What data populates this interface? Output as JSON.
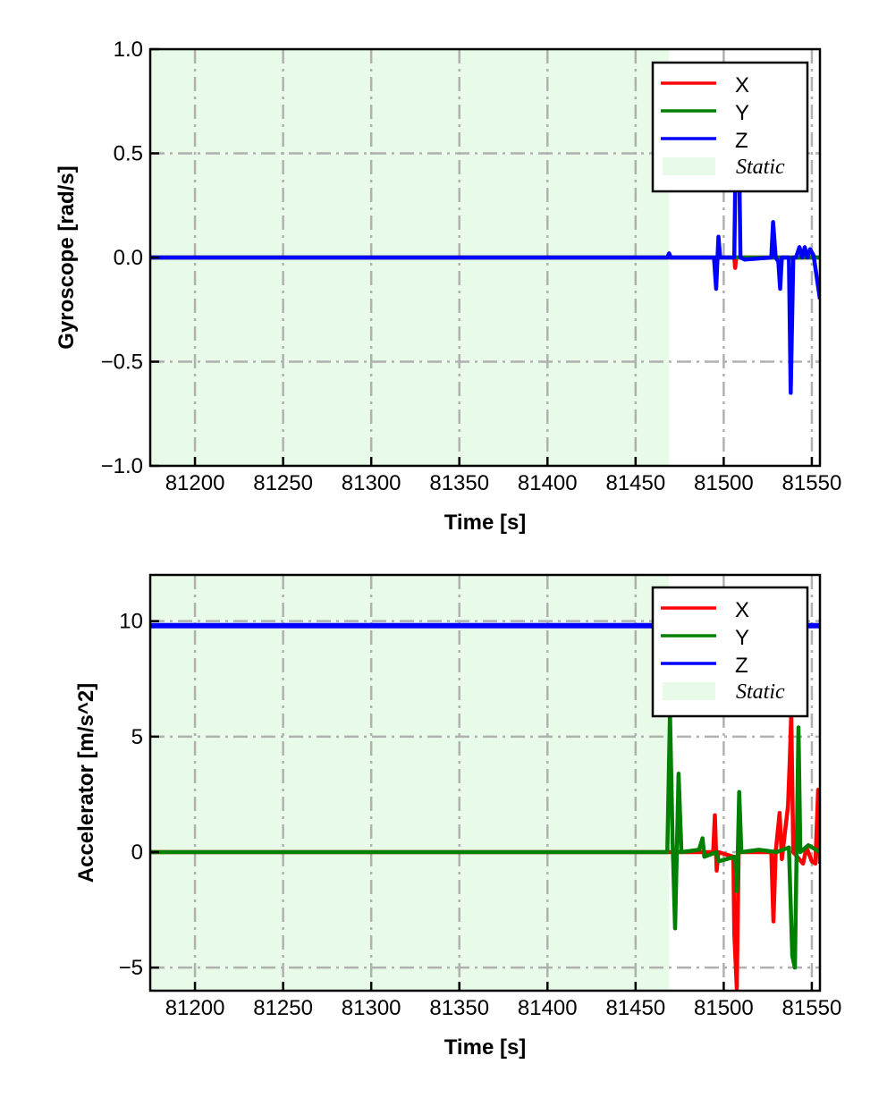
{
  "chart_data": [
    {
      "type": "line",
      "xlabel": "Time [s]",
      "ylabel": "Gyroscope [rad/s]",
      "xlim": [
        81174.6,
        81554.6
      ],
      "ylim": [
        -1.0,
        1.0
      ],
      "xticks": [
        81200,
        81250,
        81300,
        81350,
        81400,
        81450,
        81500,
        81550
      ],
      "xtick_labels": [
        "81200",
        "81250",
        "81300",
        "81350",
        "81400",
        "81450",
        "81500",
        "81550"
      ],
      "yticks": [
        -1.0,
        -0.5,
        0.0,
        0.5,
        1.0
      ],
      "ytick_labels": [
        "−1.0",
        "−0.5",
        "0.0",
        "0.5",
        "1.0"
      ],
      "grid": true,
      "legend_position": "top-right",
      "shaded_region": {
        "label": "Static",
        "x": [
          81174.6,
          81469
        ],
        "color": "#e8fbe8"
      },
      "series": [
        {
          "name": "X",
          "color": "#ff0000",
          "points": [
            [
              81174.6,
              0
            ],
            [
              81506,
              0
            ],
            [
              81506.5,
              -0.05
            ],
            [
              81507,
              0
            ],
            [
              81554.6,
              0
            ]
          ]
        },
        {
          "name": "Y",
          "color": "#008000",
          "points": [
            [
              81174.6,
              0
            ],
            [
              81554.6,
              0
            ]
          ]
        },
        {
          "name": "Z",
          "color": "#0000ff",
          "points": [
            [
              81174.6,
              0
            ],
            [
              81468,
              0
            ],
            [
              81469,
              0.02
            ],
            [
              81470,
              0
            ],
            [
              81494.5,
              0
            ],
            [
              81495.7,
              -0.15
            ],
            [
              81497,
              0.1
            ],
            [
              81498,
              0
            ],
            [
              81506,
              0
            ],
            [
              81507,
              0.65
            ],
            [
              81508.5,
              0.65
            ],
            [
              81509.5,
              0
            ],
            [
              81512,
              -0.01
            ],
            [
              81527,
              0
            ],
            [
              81528,
              0.17
            ],
            [
              81529.5,
              0
            ],
            [
              81531,
              -0.02
            ],
            [
              81532,
              -0.15
            ],
            [
              81533,
              0
            ],
            [
              81535.5,
              0
            ],
            [
              81537,
              0
            ],
            [
              81538,
              -0.65
            ],
            [
              81539.5,
              0
            ],
            [
              81541,
              0
            ],
            [
              81543,
              0.05
            ],
            [
              81544.5,
              0
            ],
            [
              81546,
              0.05
            ],
            [
              81547.5,
              0
            ],
            [
              81549,
              0.04
            ],
            [
              81551,
              0.01
            ],
            [
              81554.6,
              -0.2
            ]
          ]
        }
      ]
    },
    {
      "type": "line",
      "xlabel": "Time [s]",
      "ylabel": "Accelerator [m/s^2]",
      "xlim": [
        81174.6,
        81554.6
      ],
      "ylim": [
        -6,
        12
      ],
      "xticks": [
        81200,
        81250,
        81300,
        81350,
        81400,
        81450,
        81500,
        81550
      ],
      "xtick_labels": [
        "81200",
        "81250",
        "81300",
        "81350",
        "81400",
        "81450",
        "81500",
        "81550"
      ],
      "yticks": [
        -5,
        0,
        5,
        10
      ],
      "ytick_labels": [
        "−5",
        "0",
        "5",
        "10"
      ],
      "grid": true,
      "legend_position": "top-right",
      "shaded_region": {
        "label": "Static",
        "x": [
          81174.6,
          81469
        ],
        "color": "#e8fbe8"
      },
      "series": [
        {
          "name": "X",
          "color": "#ff0000",
          "points": [
            [
              81174.6,
              0
            ],
            [
              81494,
              0
            ],
            [
              81495,
              1.6
            ],
            [
              81496,
              -0.8
            ],
            [
              81497,
              0
            ],
            [
              81505.5,
              -0.2
            ],
            [
              81506,
              -3.5
            ],
            [
              81507.4,
              -5.9
            ],
            [
              81508.5,
              0
            ],
            [
              81527,
              0
            ],
            [
              81528.2,
              -3
            ],
            [
              81529.5,
              0
            ],
            [
              81531.7,
              1.7
            ],
            [
              81533,
              -0.3
            ],
            [
              81536.5,
              2
            ],
            [
              81537.5,
              4
            ],
            [
              81538.3,
              6
            ],
            [
              81539.5,
              0
            ],
            [
              81545,
              -0.5
            ],
            [
              81547,
              0.2
            ],
            [
              81550,
              -0.4
            ],
            [
              81552,
              -0.5
            ],
            [
              81553.6,
              2.7
            ],
            [
              81554.6,
              -0.5
            ]
          ]
        },
        {
          "name": "Y",
          "color": "#008000",
          "points": [
            [
              81174.6,
              0
            ],
            [
              81468,
              0
            ],
            [
              81469.5,
              6
            ],
            [
              81471,
              0.5
            ],
            [
              81472.4,
              -3.3
            ],
            [
              81474.4,
              3.4
            ],
            [
              81476,
              0
            ],
            [
              81486,
              0.1
            ],
            [
              81488,
              0.6
            ],
            [
              81489,
              -0.2
            ],
            [
              81496,
              0
            ],
            [
              81497,
              -0.4
            ],
            [
              81506.5,
              -0.2
            ],
            [
              81507.5,
              -1.7
            ],
            [
              81508.8,
              2.6
            ],
            [
              81510,
              0
            ],
            [
              81520,
              0.1
            ],
            [
              81530,
              0
            ],
            [
              81537,
              0.2
            ],
            [
              81538.9,
              -4.5
            ],
            [
              81540.4,
              -5
            ],
            [
              81542.4,
              5.4
            ],
            [
              81543.5,
              0
            ],
            [
              81548,
              0.3
            ],
            [
              81554.6,
              0
            ]
          ]
        },
        {
          "name": "Z",
          "color": "#0000ff",
          "points": [
            [
              81174.6,
              9.8
            ],
            [
              81554.6,
              9.8
            ]
          ]
        }
      ]
    }
  ]
}
